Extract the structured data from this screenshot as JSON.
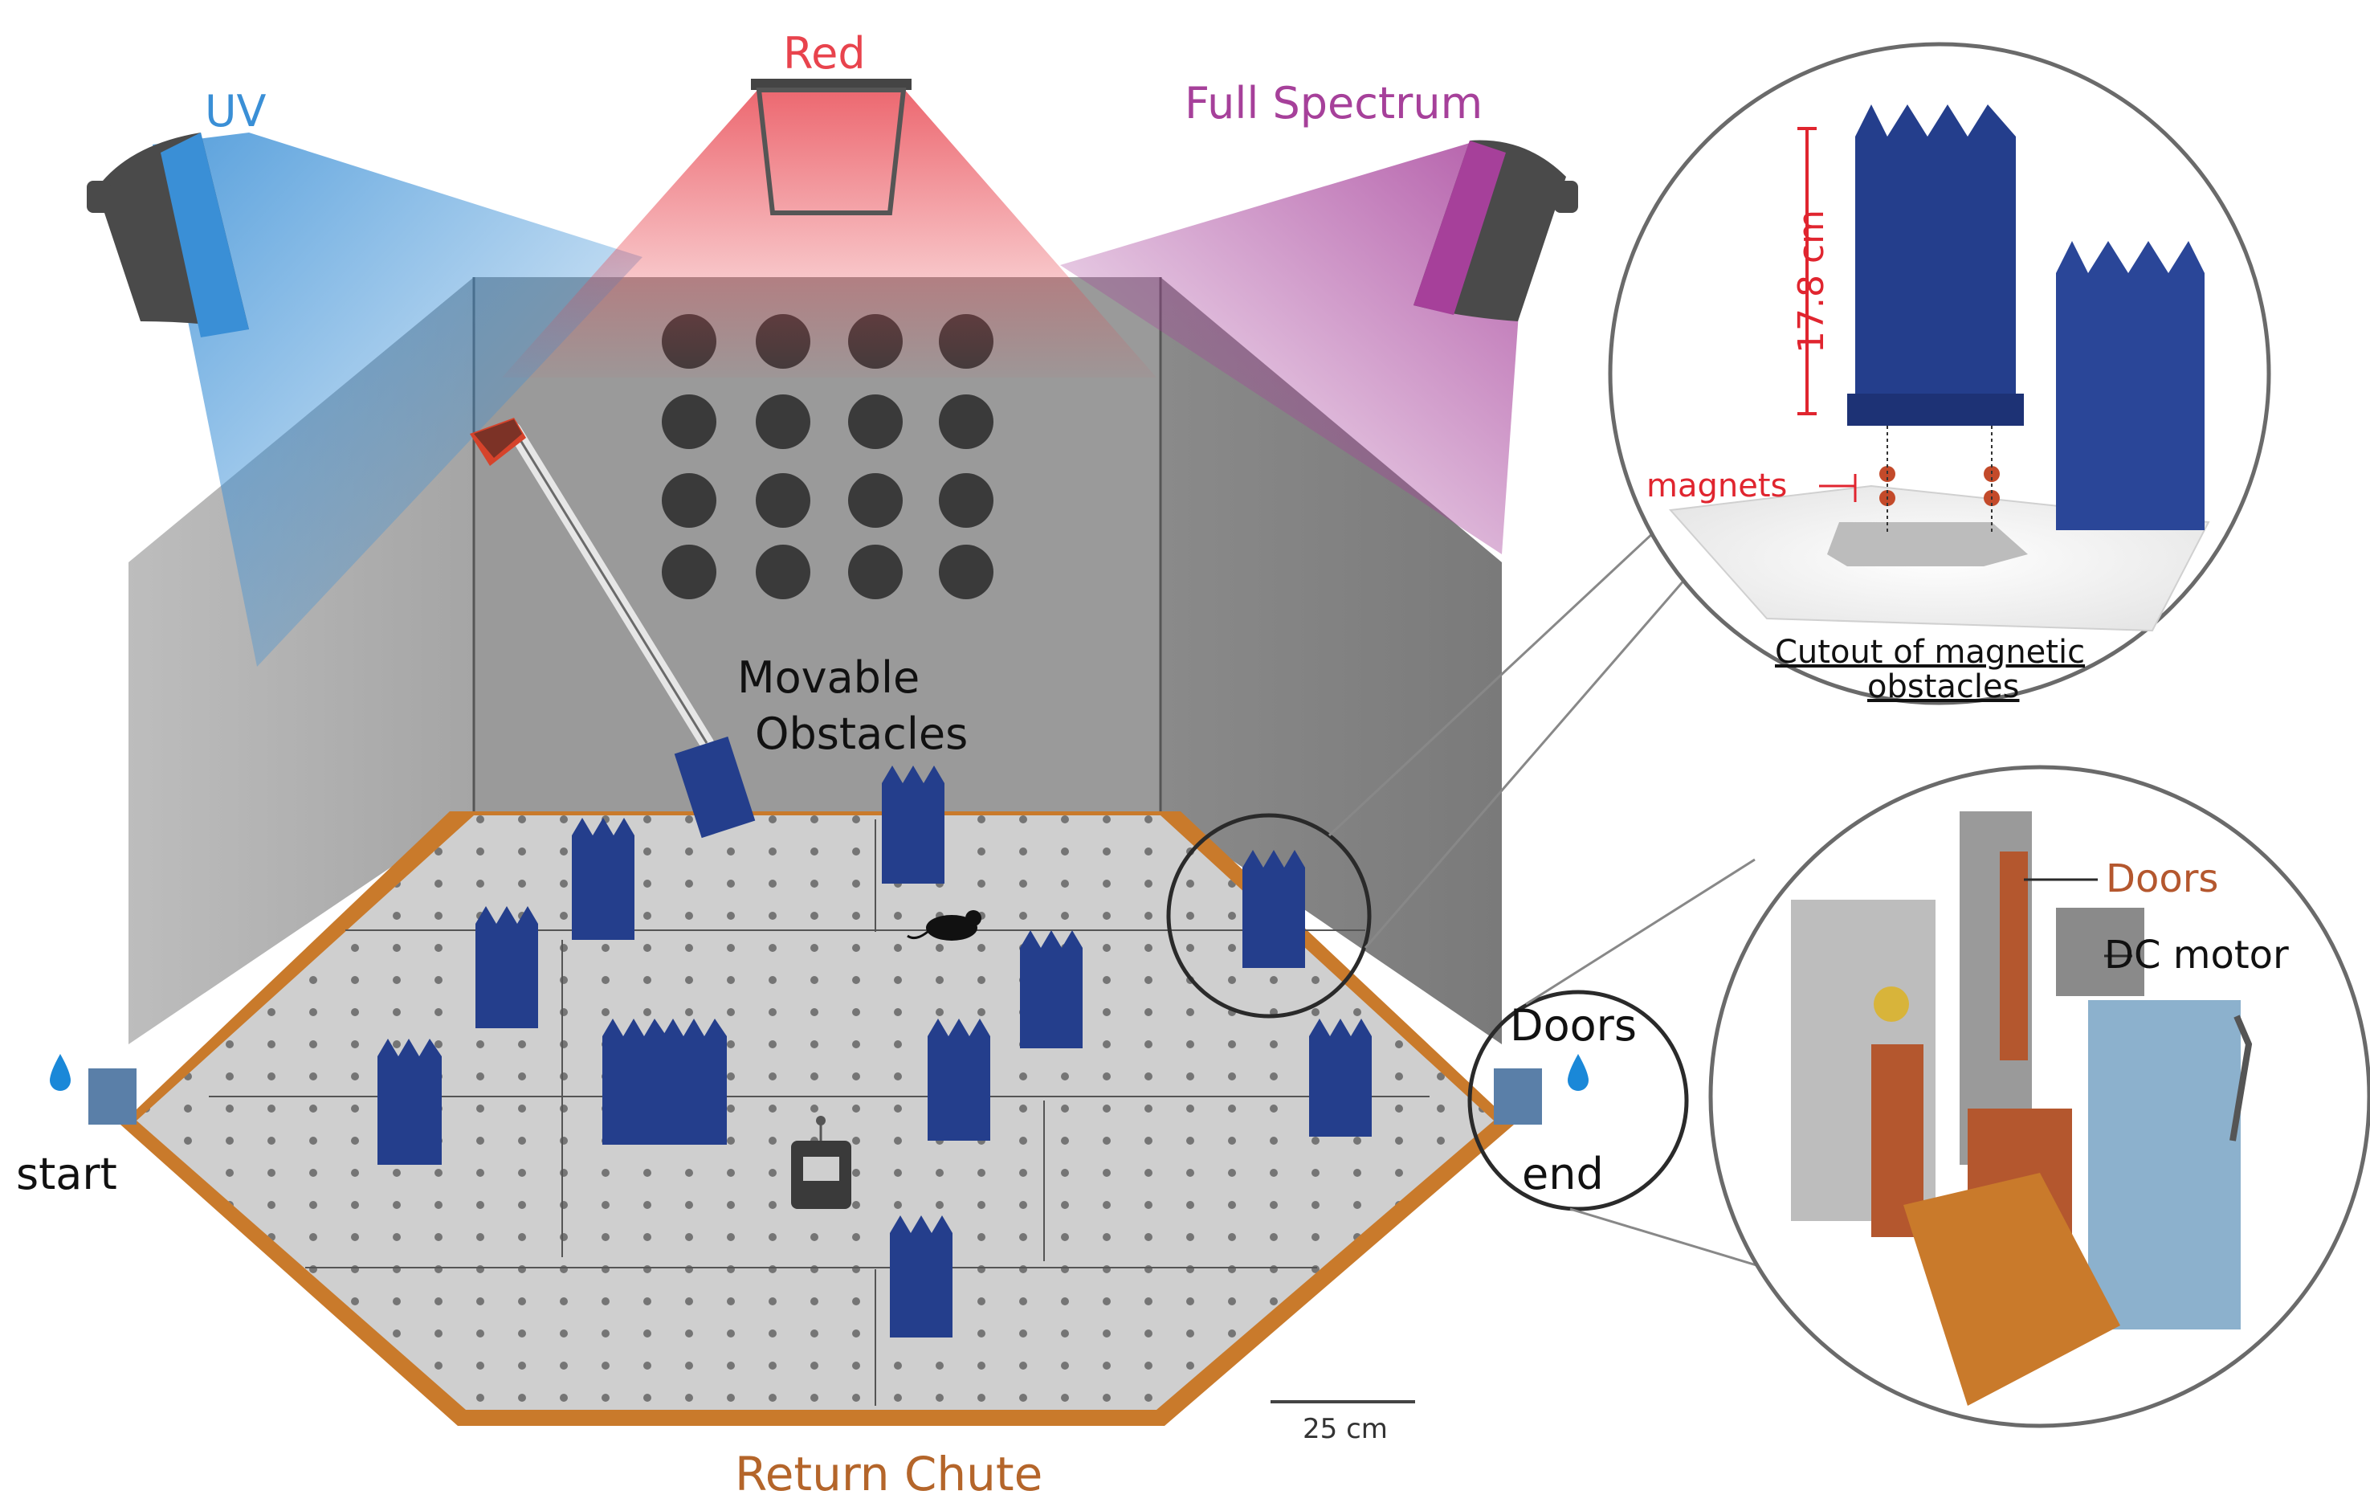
{
  "lights": {
    "uv": {
      "label": "UV",
      "color": "#3a8fd6"
    },
    "red": {
      "label": "Red",
      "color": "#e8434d"
    },
    "full": {
      "label": "Full Spectrum",
      "color": "#a6409a"
    }
  },
  "arena": {
    "obstacles_label_line1": "Movable",
    "obstacles_label_line2": "Obstacles",
    "start_label": "start",
    "end_label": "end",
    "doors_label": "Doors",
    "chute_label": "Return Chute",
    "scale_label": "25 cm"
  },
  "inset_magnetic": {
    "height_label": "17.8 cm",
    "magnets_label": "magnets",
    "caption_line1": "Cutout of magnetic",
    "caption_line2": "obstacles"
  },
  "inset_doors": {
    "doors_label": "Doors",
    "motor_label": "DC motor"
  },
  "colors": {
    "obstacle_blue": "#243e8c",
    "chute_orange": "#c97a2b",
    "wall_grey": "#8c8c8c",
    "annotation_red": "#e0252f",
    "door_brown": "#b4572e"
  }
}
